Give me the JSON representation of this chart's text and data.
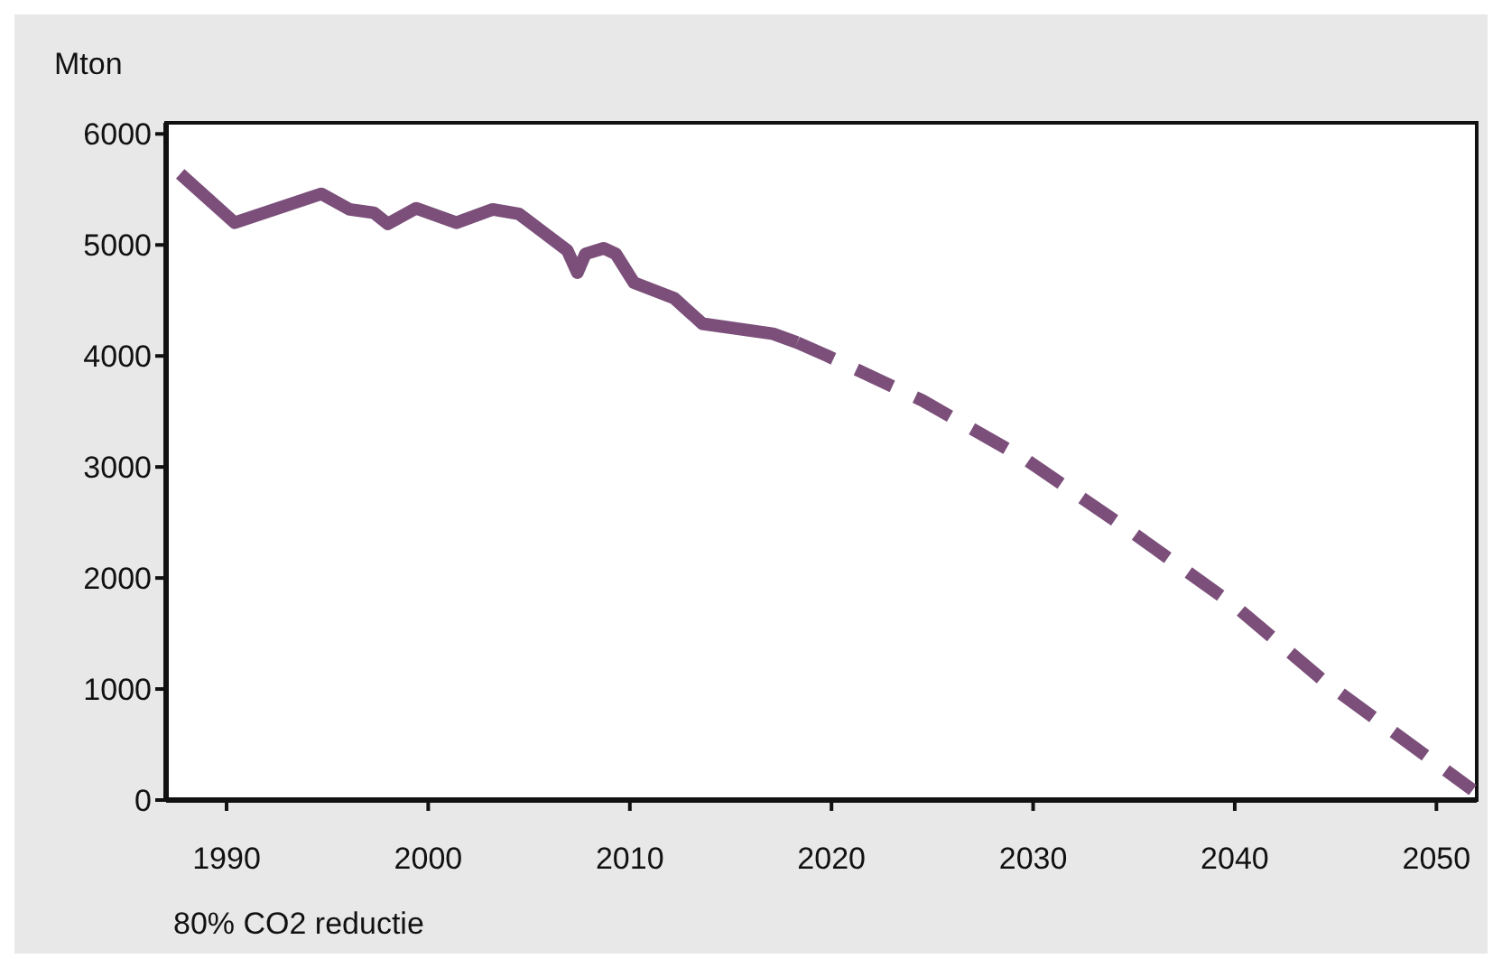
{
  "chart_data": {
    "type": "line",
    "ylabel": "Mton",
    "annotations": [
      "80% CO2 reductie"
    ],
    "xlim": [
      1987,
      2052
    ],
    "xticks": [
      1990,
      2000,
      2010,
      2020,
      2030,
      2040,
      2050
    ],
    "ylim": [
      0,
      6100
    ],
    "yticks": [
      0,
      1000,
      2000,
      3000,
      4000,
      5000,
      6000
    ],
    "marker": "none",
    "series": [
      {
        "color": "#7b4f7a",
        "line_style": "solid",
        "x": [
          1987.7,
          1990.4,
          1994.7,
          1996.1,
          1997.3,
          1998,
          1999.4,
          2001.4,
          2003.2,
          2004.5,
          2006.9,
          2007.4,
          2007.8,
          2008.7,
          2009.3,
          2010.2,
          2012.2,
          2013.6,
          2017.1,
          2018.3
        ],
        "values": [
          5640,
          5200,
          5460,
          5320,
          5290,
          5190,
          5330,
          5200,
          5320,
          5280,
          4950,
          4750,
          4920,
          4970,
          4920,
          4660,
          4520,
          4290,
          4200,
          4120
        ]
      },
      {
        "color": "#7b4f7a",
        "line_style": "dashed",
        "x": [
          2018.3,
          2019.8,
          2024.5,
          2029.7,
          2035,
          2040,
          2044.5,
          2051.8
        ],
        "values": [
          4120,
          4000,
          3600,
          3060,
          2400,
          1750,
          1060,
          90
        ]
      }
    ]
  }
}
